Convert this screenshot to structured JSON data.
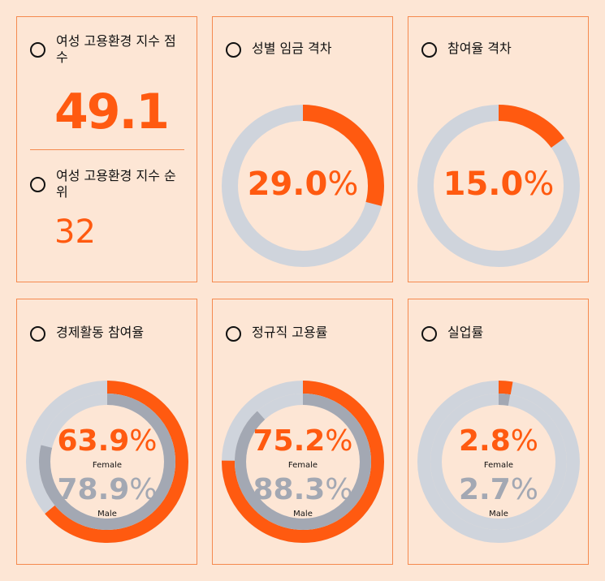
{
  "score": {
    "title": "여성 고용환경 지수 점수",
    "value": 49.1
  },
  "rank": {
    "title": "여성 고용환경 지수 순위",
    "value": 32
  },
  "gaps": [
    {
      "title": "성별 임금 격차",
      "value": 29,
      "value_label": "29.0",
      "unit": "%"
    },
    {
      "title": "참여율 격차",
      "value": 15,
      "value_label": "15.0",
      "unit": "%"
    }
  ],
  "comparisons": [
    {
      "title": "경제활동 참여율",
      "series": [
        {
          "name": "Female",
          "value": 63.9,
          "unit": "%",
          "color": "#ff5a10"
        },
        {
          "name": "Male",
          "value": 78.9,
          "unit": "%",
          "color": "#a3a8b3"
        }
      ]
    },
    {
      "title": "정규직 고용률",
      "series": [
        {
          "name": "Female",
          "value": 75.2,
          "unit": "%",
          "color": "#ff5a10"
        },
        {
          "name": "Male",
          "value": 88.3,
          "unit": "%",
          "color": "#a3a8b3"
        }
      ]
    },
    {
      "title": "실업률",
      "series": [
        {
          "name": "Female",
          "value": 2.8,
          "unit": "%",
          "color": "#ff5a10"
        },
        {
          "name": "Male",
          "value": 2.7,
          "unit": "%",
          "color": "#a3a8b3"
        }
      ]
    }
  ],
  "accent": "#ff5a10",
  "track": "#cfd4dc"
}
